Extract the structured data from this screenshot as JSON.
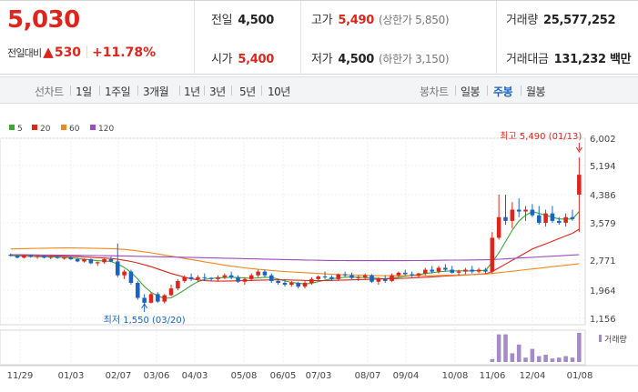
{
  "header": {
    "price": "5,030",
    "change_label": "전일대비",
    "change_arrow": "▲",
    "change_amount": "530",
    "change_percent": "+11.78%",
    "prev_close": {
      "label": "전일",
      "value": "4,500"
    },
    "open": {
      "label": "시가",
      "value": "5,400"
    },
    "high": {
      "label": "고가",
      "value": "5,490",
      "sub_label": "(상한가 5,850)"
    },
    "low": {
      "label": "저가",
      "value": "4,500",
      "sub_label": "(하한가 3,150)"
    },
    "volume": {
      "label": "거래량",
      "value": "25,577,252"
    },
    "amount": {
      "label": "거래대금",
      "value": "131,232 백만"
    }
  },
  "toolbar": {
    "line_title": "선차트",
    "periods": [
      "1일",
      "1주일",
      "3개월",
      "1년",
      "3년",
      "5년",
      "10년"
    ],
    "candle_title": "봉차트",
    "candles": [
      "일봉",
      "주봉",
      "월봉"
    ],
    "selected_candle": "주봉"
  },
  "chart_data": {
    "type": "candlestick",
    "legend": [
      {
        "name": "5",
        "color": "#3aa735"
      },
      {
        "name": "20",
        "color": "#e0241c"
      },
      {
        "name": "60",
        "color": "#f0891e"
      },
      {
        "name": "120",
        "color": "#9b4ec1"
      }
    ],
    "y_ticks": [
      "6,002",
      "5,194",
      "4,386",
      "3,579",
      "2,771",
      "1,964",
      "1,156"
    ],
    "x_ticks": [
      "11/29",
      "01/03",
      "02/07",
      "03/06",
      "04/03",
      "05/08",
      "06/05",
      "07/03",
      "08/07",
      "09/04",
      "10/08",
      "11/06",
      "12/04",
      "01/08"
    ],
    "ylim": [
      1156,
      6002
    ],
    "max_annotation": "최고 5,490 (01/13)",
    "min_annotation": "최저 1,550 (03/20)",
    "volume_label": "거래량",
    "up_color": "#e0241c",
    "down_color": "#1a63c6",
    "volume_color": "#a48ac6",
    "candles": [
      [
        2900,
        2930,
        2850,
        2870
      ],
      [
        2870,
        2900,
        2800,
        2820
      ],
      [
        2820,
        2900,
        2800,
        2880
      ],
      [
        2880,
        2900,
        2820,
        2840
      ],
      [
        2840,
        2870,
        2790,
        2860
      ],
      [
        2860,
        2880,
        2800,
        2820
      ],
      [
        2820,
        2860,
        2780,
        2840
      ],
      [
        2840,
        2870,
        2790,
        2810
      ],
      [
        2810,
        2840,
        2770,
        2820
      ],
      [
        2820,
        2850,
        2760,
        2780
      ],
      [
        2780,
        2820,
        2700,
        2720
      ],
      [
        2720,
        2800,
        2690,
        2780
      ],
      [
        2780,
        2800,
        2650,
        2670
      ],
      [
        2670,
        2720,
        2600,
        2700
      ],
      [
        2700,
        2800,
        2660,
        2780
      ],
      [
        2780,
        2850,
        2700,
        2720
      ],
      [
        2720,
        3200,
        2300,
        2350
      ],
      [
        2350,
        2500,
        2250,
        2450
      ],
      [
        2450,
        2500,
        2100,
        2150
      ],
      [
        2150,
        2200,
        1700,
        1750
      ],
      [
        1750,
        1850,
        1550,
        1620
      ],
      [
        1620,
        1900,
        1600,
        1850
      ],
      [
        1850,
        1900,
        1620,
        1650
      ],
      [
        1650,
        1850,
        1600,
        1820
      ],
      [
        1820,
        2100,
        1800,
        2000
      ],
      [
        2000,
        2250,
        1950,
        2200
      ],
      [
        2200,
        2350,
        2150,
        2300
      ],
      [
        2300,
        2400,
        2200,
        2250
      ],
      [
        2250,
        2350,
        2180,
        2300
      ],
      [
        2300,
        2400,
        2200,
        2280
      ],
      [
        2280,
        2300,
        2200,
        2250
      ],
      [
        2250,
        2350,
        2180,
        2300
      ],
      [
        2300,
        2400,
        2250,
        2350
      ],
      [
        2350,
        2450,
        2250,
        2300
      ],
      [
        2300,
        2350,
        2150,
        2180
      ],
      [
        2180,
        2300,
        2100,
        2250
      ],
      [
        2250,
        2400,
        2200,
        2350
      ],
      [
        2350,
        2500,
        2300,
        2450
      ],
      [
        2450,
        2500,
        2300,
        2350
      ],
      [
        2350,
        2400,
        2150,
        2200
      ],
      [
        2200,
        2250,
        2100,
        2150
      ],
      [
        2150,
        2250,
        2050,
        2100
      ],
      [
        2100,
        2200,
        2050,
        2150
      ],
      [
        2150,
        2180,
        2000,
        2050
      ],
      [
        2050,
        2200,
        2000,
        2150
      ],
      [
        2150,
        2300,
        2100,
        2250
      ],
      [
        2250,
        2350,
        2200,
        2320
      ],
      [
        2320,
        2450,
        2250,
        2300
      ],
      [
        2300,
        2350,
        2200,
        2250
      ],
      [
        2250,
        2400,
        2200,
        2380
      ],
      [
        2380,
        2450,
        2300,
        2350
      ],
      [
        2350,
        2420,
        2250,
        2280
      ],
      [
        2280,
        2350,
        2200,
        2300
      ],
      [
        2300,
        2400,
        2250,
        2350
      ],
      [
        2350,
        2380,
        2150,
        2180
      ],
      [
        2180,
        2300,
        2100,
        2250
      ],
      [
        2250,
        2350,
        2150,
        2200
      ],
      [
        2200,
        2400,
        2180,
        2350
      ],
      [
        2350,
        2450,
        2300,
        2420
      ],
      [
        2420,
        2500,
        2350,
        2380
      ],
      [
        2380,
        2450,
        2300,
        2350
      ],
      [
        2350,
        2420,
        2300,
        2400
      ],
      [
        2400,
        2550,
        2350,
        2500
      ],
      [
        2500,
        2600,
        2400,
        2450
      ],
      [
        2450,
        2600,
        2400,
        2550
      ],
      [
        2550,
        2650,
        2450,
        2500
      ],
      [
        2500,
        2600,
        2400,
        2420
      ],
      [
        2420,
        2500,
        2350,
        2450
      ],
      [
        2450,
        2550,
        2380,
        2500
      ],
      [
        2500,
        2600,
        2400,
        2450
      ],
      [
        2450,
        2550,
        2400,
        2500
      ],
      [
        2500,
        2550,
        2400,
        2450
      ],
      [
        2450,
        3500,
        2400,
        3350
      ],
      [
        3350,
        4500,
        3300,
        3900
      ],
      [
        3900,
        4500,
        3700,
        3800
      ],
      [
        3800,
        4300,
        3600,
        4100
      ],
      [
        4100,
        4400,
        3900,
        4050
      ],
      [
        4050,
        4200,
        3800,
        4100
      ],
      [
        4100,
        4250,
        3900,
        3950
      ],
      [
        3950,
        4200,
        3700,
        3750
      ],
      [
        3750,
        4100,
        3650,
        4000
      ],
      [
        4000,
        4200,
        3750,
        3800
      ],
      [
        3800,
        3900,
        3700,
        3750
      ],
      [
        3750,
        4000,
        3650,
        3900
      ],
      [
        3900,
        4100,
        3800,
        3850
      ],
      [
        4500,
        5490,
        3500,
        5030
      ]
    ],
    "ma": {
      "5": [
        2880,
        2870,
        2860,
        2855,
        2850,
        2845,
        2840,
        2835,
        2830,
        2820,
        2800,
        2780,
        2760,
        2740,
        2730,
        2720,
        2650,
        2560,
        2430,
        2250,
        2050,
        1900,
        1800,
        1740,
        1750,
        1850,
        1960,
        2080,
        2180,
        2240,
        2270,
        2280,
        2290,
        2300,
        2290,
        2280,
        2270,
        2280,
        2300,
        2290,
        2250,
        2200,
        2160,
        2140,
        2120,
        2140,
        2180,
        2220,
        2260,
        2280,
        2300,
        2310,
        2300,
        2290,
        2280,
        2270,
        2260,
        2280,
        2300,
        2320,
        2350,
        2370,
        2400,
        2420,
        2440,
        2460,
        2470,
        2470,
        2470,
        2470,
        2480,
        2480,
        2700,
        2950,
        3250,
        3550,
        3800,
        3950,
        4050,
        4000,
        3950,
        3900,
        3850,
        3850,
        3850,
        4050
      ],
      "20": [
        2900,
        2895,
        2890,
        2885,
        2880,
        2875,
        2870,
        2865,
        2860,
        2855,
        2850,
        2840,
        2830,
        2820,
        2810,
        2800,
        2780,
        2750,
        2720,
        2680,
        2630,
        2580,
        2520,
        2460,
        2400,
        2350,
        2300,
        2260,
        2230,
        2210,
        2200,
        2195,
        2195,
        2200,
        2205,
        2210,
        2215,
        2220,
        2225,
        2230,
        2230,
        2230,
        2225,
        2220,
        2215,
        2210,
        2210,
        2210,
        2215,
        2220,
        2225,
        2230,
        2235,
        2240,
        2245,
        2250,
        2255,
        2260,
        2265,
        2270,
        2280,
        2290,
        2300,
        2310,
        2320,
        2330,
        2340,
        2350,
        2360,
        2370,
        2380,
        2390,
        2450,
        2550,
        2650,
        2750,
        2850,
        2950,
        3050,
        3120,
        3190,
        3260,
        3330,
        3400,
        3470,
        3580
      ],
      "60": [
        3050,
        3055,
        3060,
        3065,
        3070,
        3072,
        3075,
        3077,
        3080,
        3080,
        3078,
        3075,
        3072,
        3068,
        3064,
        3060,
        3050,
        3040,
        3020,
        3000,
        2975,
        2950,
        2920,
        2890,
        2860,
        2830,
        2800,
        2770,
        2740,
        2710,
        2680,
        2650,
        2620,
        2595,
        2570,
        2550,
        2530,
        2510,
        2495,
        2480,
        2465,
        2450,
        2440,
        2430,
        2420,
        2410,
        2400,
        2390,
        2380,
        2370,
        2365,
        2360,
        2355,
        2350,
        2345,
        2340,
        2340,
        2340,
        2340,
        2340,
        2340,
        2340,
        2340,
        2340,
        2345,
        2350,
        2355,
        2360,
        2365,
        2370,
        2375,
        2380,
        2400,
        2420,
        2440,
        2460,
        2480,
        2500,
        2520,
        2540,
        2560,
        2580,
        2600,
        2620,
        2640,
        2660
      ],
      "120": [
        2900,
        2900,
        2898,
        2896,
        2894,
        2892,
        2890,
        2888,
        2886,
        2884,
        2882,
        2880,
        2878,
        2876,
        2874,
        2872,
        2870,
        2866,
        2862,
        2858,
        2854,
        2850,
        2846,
        2842,
        2838,
        2834,
        2830,
        2826,
        2822,
        2818,
        2814,
        2810,
        2806,
        2802,
        2798,
        2794,
        2790,
        2786,
        2782,
        2778,
        2774,
        2770,
        2766,
        2762,
        2758,
        2754,
        2750,
        2748,
        2746,
        2744,
        2742,
        2740,
        2740,
        2740,
        2740,
        2740,
        2740,
        2740,
        2740,
        2740,
        2742,
        2744,
        2746,
        2748,
        2750,
        2752,
        2754,
        2756,
        2758,
        2760,
        2762,
        2764,
        2770,
        2780,
        2790,
        2800,
        2810,
        2820,
        2830,
        2840,
        2850,
        2860,
        2870,
        2880,
        2890,
        2900
      ]
    },
    "volume": [
      0,
      0,
      0,
      0,
      0,
      0,
      0,
      0,
      0,
      0,
      0,
      0,
      0,
      0,
      0,
      0,
      0,
      0,
      0,
      0,
      0,
      0,
      0,
      0,
      0,
      0,
      0,
      0,
      0,
      0,
      0,
      0,
      0,
      0,
      0,
      0,
      0,
      0,
      0,
      0,
      0,
      0,
      0,
      0,
      0,
      0,
      0,
      0,
      0,
      0,
      0,
      0,
      0,
      0,
      0,
      0,
      0,
      0,
      0,
      0,
      0,
      0,
      0,
      0,
      0,
      0,
      0,
      0,
      0,
      0,
      0,
      0,
      0.1,
      0.95,
      0.95,
      0.3,
      0.6,
      0.15,
      0.45,
      0.2,
      0.25,
      0.12,
      0.15,
      0.2,
      0.15,
      1.0
    ]
  }
}
